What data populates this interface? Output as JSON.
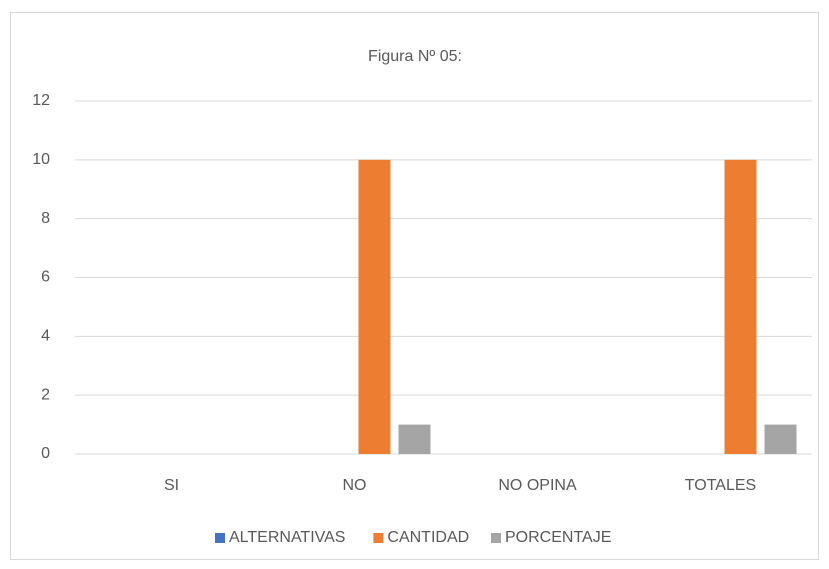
{
  "chart_data": {
    "type": "bar",
    "title": "Figura Nº 05:",
    "categories": [
      "SI",
      "NO",
      "NO OPINA",
      "TOTALES"
    ],
    "series": [
      {
        "name": "ALTERNATIVAS",
        "color": "#4472c4",
        "values": [
          0,
          0,
          0,
          0
        ]
      },
      {
        "name": "CANTIDAD",
        "color": "#ed7d31",
        "values": [
          0,
          10,
          0,
          10
        ]
      },
      {
        "name": "PORCENTAJE",
        "color": "#a5a5a5",
        "values": [
          0,
          1,
          0,
          1
        ]
      }
    ],
    "ylim": [
      0,
      12
    ],
    "yticks": [
      0,
      2,
      4,
      6,
      8,
      10,
      12
    ],
    "grid": true,
    "legend": "bottom"
  }
}
